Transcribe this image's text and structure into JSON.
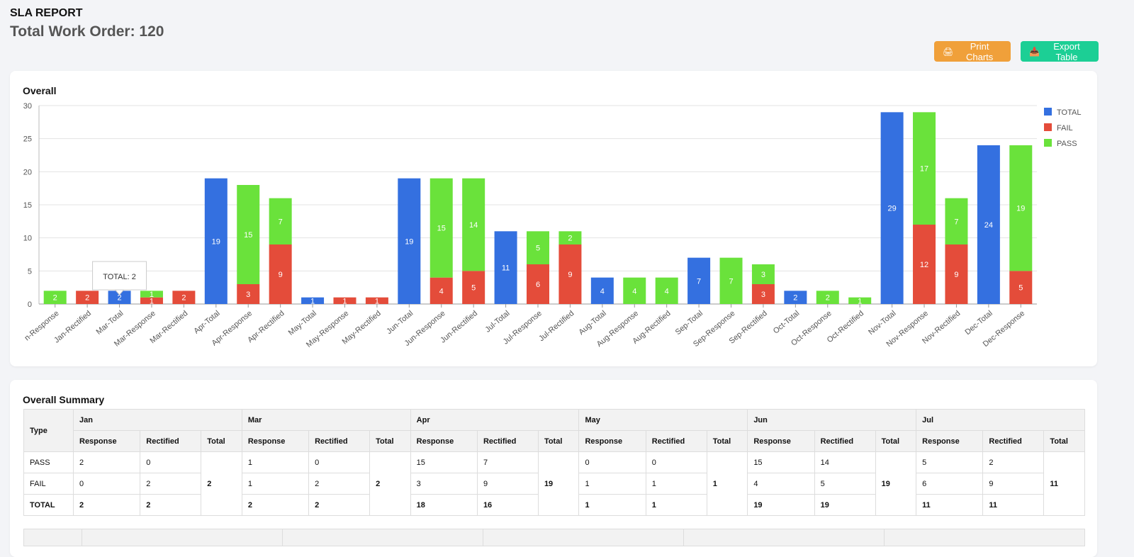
{
  "header": {
    "title": "SLA REPORT",
    "subtitle": "Total Work Order: 120"
  },
  "actions": {
    "print_label": "Print Charts",
    "export_label": "Export Table"
  },
  "chart_card": {
    "title": "Overall"
  },
  "tooltip": {
    "text": "TOTAL: 2"
  },
  "colors": {
    "total": "#3470e0",
    "fail": "#e44c3a",
    "pass": "#6ae23b"
  },
  "chart_data": {
    "type": "bar",
    "stacked": true,
    "title": "Overall",
    "ylim": [
      0,
      30
    ],
    "yticks": [
      0,
      5,
      10,
      15,
      20,
      25,
      30
    ],
    "grid": true,
    "legend_position": "right",
    "categories": [
      "Jan-Response",
      "Jan-Rectified",
      "Mar-Total",
      "Mar-Response",
      "Mar-Rectified",
      "Apr-Total",
      "Apr-Response",
      "Apr-Rectified",
      "May-Total",
      "May-Response",
      "May-Rectified",
      "Jun-Total",
      "Jun-Response",
      "Jun-Rectified",
      "Jul-Total",
      "Jul-Response",
      "Jul-Rectified",
      "Aug-Total",
      "Aug-Response",
      "Aug-Rectified",
      "Sep-Total",
      "Sep-Response",
      "Sep-Rectified",
      "Oct-Total",
      "Oct-Response",
      "Oct-Rectified",
      "Nov-Total",
      "Nov-Response",
      "Nov-Rectified",
      "Dec-Total",
      "Dec-Response"
    ],
    "tick_labels": [
      "n-Response",
      "Jan-Rectified",
      "Mar-Total",
      "Mar-Response",
      "Mar-Rectified",
      "Apr-Total",
      "Apr-Response",
      "Apr-Rectified",
      "May-Total",
      "May-Response",
      "May-Rectified",
      "Jun-Total",
      "Jun-Response",
      "Jun-Rectified",
      "Jul-Total",
      "Jul-Response",
      "Jul-Rectified",
      "Aug-Total",
      "Aug-Response",
      "Aug-Rectified",
      "Sep-Total",
      "Sep-Response",
      "Sep-Rectified",
      "Oct-Total",
      "Oct-Response",
      "Oct-Rectified",
      "Nov-Total",
      "Nov-Response",
      "Nov-Rectified",
      "Dec-Total",
      "Dec-Response"
    ],
    "series": [
      {
        "name": "TOTAL",
        "values": [
          0,
          0,
          2,
          0,
          0,
          19,
          0,
          0,
          1,
          0,
          0,
          19,
          0,
          0,
          11,
          0,
          0,
          4,
          0,
          0,
          7,
          0,
          0,
          2,
          0,
          0,
          29,
          0,
          0,
          24,
          0
        ]
      },
      {
        "name": "FAIL",
        "values": [
          0,
          2,
          0,
          1,
          2,
          0,
          3,
          9,
          0,
          1,
          1,
          0,
          4,
          5,
          0,
          6,
          9,
          0,
          0,
          0,
          0,
          0,
          3,
          0,
          0,
          0,
          0,
          12,
          9,
          0,
          5
        ]
      },
      {
        "name": "PASS",
        "values": [
          2,
          0,
          0,
          1,
          0,
          0,
          15,
          7,
          0,
          0,
          0,
          0,
          15,
          14,
          0,
          5,
          2,
          0,
          4,
          4,
          0,
          7,
          3,
          0,
          2,
          1,
          0,
          17,
          7,
          0,
          19
        ]
      }
    ]
  },
  "summary": {
    "title": "Overall Summary",
    "type_header": "Type",
    "months": [
      {
        "name": "Jan",
        "sub": [
          "Response",
          "Rectified",
          "Total"
        ],
        "pass": [
          "2",
          "0"
        ],
        "fail": [
          "0",
          "2"
        ],
        "total": [
          "2",
          "2"
        ],
        "month_total": "2"
      },
      {
        "name": "Mar",
        "sub": [
          "Response",
          "Rectified",
          "Total"
        ],
        "pass": [
          "1",
          "0"
        ],
        "fail": [
          "1",
          "2"
        ],
        "total": [
          "2",
          "2"
        ],
        "month_total": "2"
      },
      {
        "name": "Apr",
        "sub": [
          "Response",
          "Rectified",
          "Total"
        ],
        "pass": [
          "15",
          "7"
        ],
        "fail": [
          "3",
          "9"
        ],
        "total": [
          "18",
          "16"
        ],
        "month_total": "19"
      },
      {
        "name": "May",
        "sub": [
          "Response",
          "Rectified",
          "Total"
        ],
        "pass": [
          "0",
          "0"
        ],
        "fail": [
          "1",
          "1"
        ],
        "total": [
          "1",
          "1"
        ],
        "month_total": "1"
      },
      {
        "name": "Jun",
        "sub": [
          "Response",
          "Rectified",
          "Total"
        ],
        "pass": [
          "15",
          "14"
        ],
        "fail": [
          "4",
          "5"
        ],
        "total": [
          "19",
          "19"
        ],
        "month_total": "19"
      },
      {
        "name": "Jul",
        "sub": [
          "Response",
          "Rectified",
          "Total"
        ],
        "pass": [
          "5",
          "2"
        ],
        "fail": [
          "6",
          "9"
        ],
        "total": [
          "11",
          "11"
        ],
        "month_total": "11"
      }
    ],
    "row_labels": {
      "pass": "PASS",
      "fail": "FAIL",
      "total": "TOTAL"
    }
  }
}
